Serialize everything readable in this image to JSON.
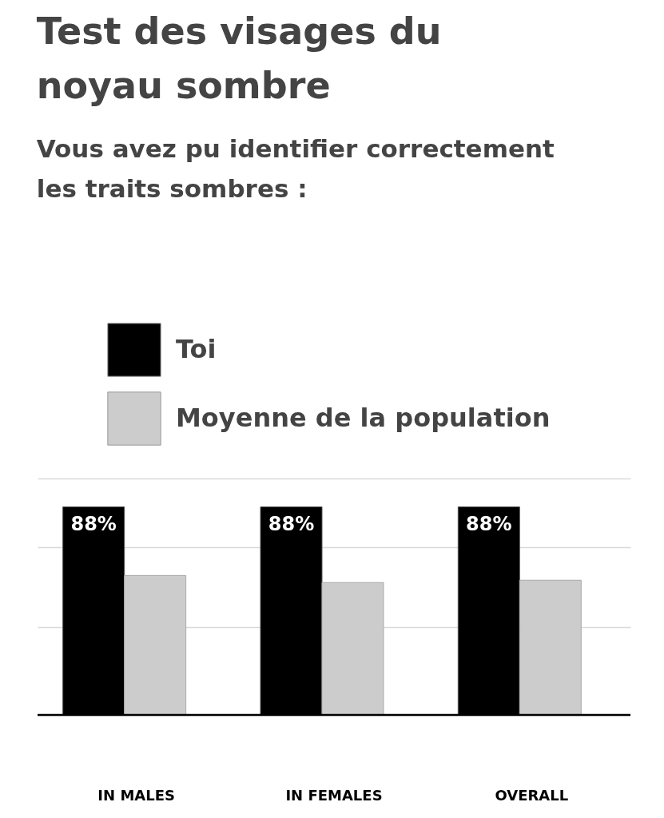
{
  "chart_data": {
    "type": "bar",
    "title": "Test des visages du noyau sombre",
    "subtitle": "Vous avez pu identifier correctement les traits sombres :",
    "categories": [
      "IN MALES",
      "IN FEMALES",
      "OVERALL"
    ],
    "series": [
      {
        "name": "Toi",
        "color": "#000000",
        "values": [
          88,
          88,
          88
        ],
        "value_labels": [
          "88%",
          "88%",
          "88%"
        ]
      },
      {
        "name": "Moyenne de la population",
        "color": "#cccccc",
        "values": [
          59,
          56,
          57
        ]
      }
    ],
    "ylim": [
      0,
      100
    ],
    "yticks": [
      {
        "value": 0,
        "label": null
      },
      {
        "value": 37,
        "label": null
      },
      {
        "value": 71,
        "label": null
      },
      {
        "value": 100,
        "label": null
      }
    ],
    "tick_labels": "x",
    "grid": "y",
    "legend": "top left"
  }
}
